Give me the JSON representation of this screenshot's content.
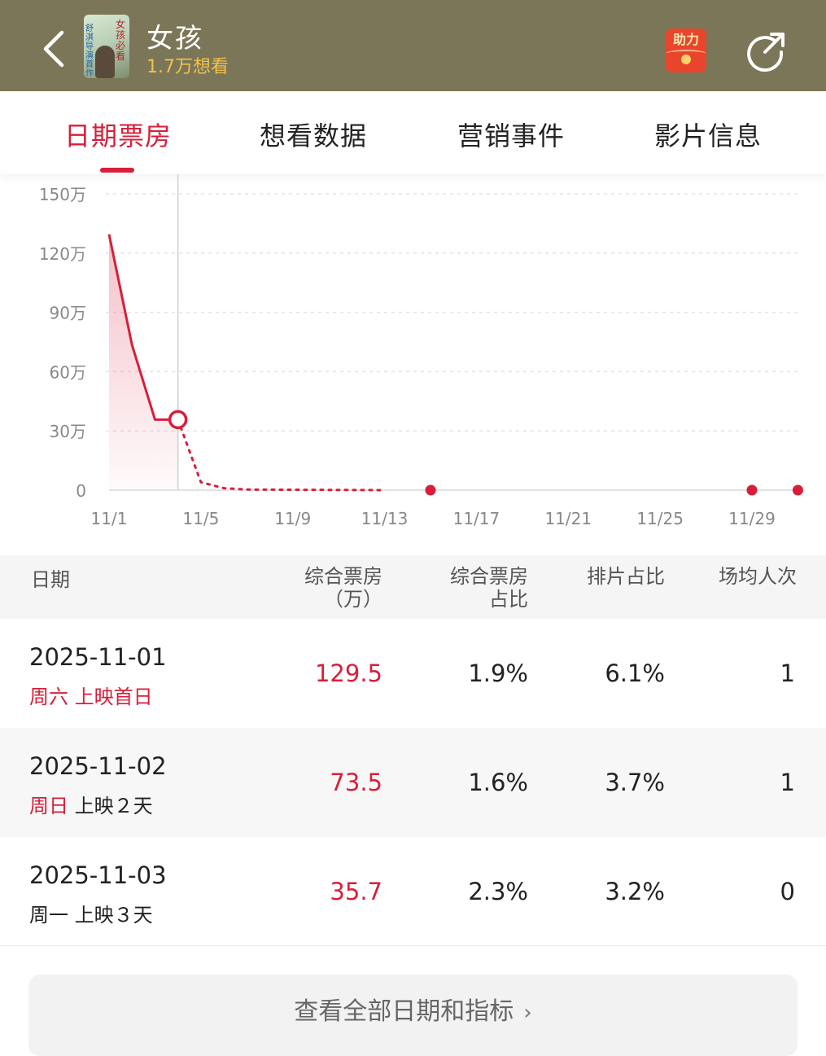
{
  "header": {
    "title": "女孩",
    "want_count": "1.7万想看",
    "poster_text_a": "女孩必看",
    "poster_text_b": "舒淇导演首作",
    "help_label": "助力"
  },
  "tabs": [
    {
      "label": "日期票房",
      "active": true
    },
    {
      "label": "想看数据",
      "active": false
    },
    {
      "label": "营销事件",
      "active": false
    },
    {
      "label": "影片信息",
      "active": false
    }
  ],
  "colors": {
    "accent": "#d81e3a",
    "header_bg": "#7a7657",
    "want_count": "#f2c14e"
  },
  "chart_data": {
    "type": "line",
    "y_unit_suffix": "万",
    "yticks": [
      0,
      30,
      60,
      90,
      120,
      150
    ],
    "ytick_labels": [
      "0",
      "30万",
      "60万",
      "90万",
      "120万",
      "150万"
    ],
    "ylim": [
      0,
      150
    ],
    "xtick_labels": [
      "11/1",
      "11/5",
      "11/9",
      "11/13",
      "11/17",
      "11/21",
      "11/25",
      "11/29"
    ],
    "xlim_days": [
      1,
      31
    ],
    "grid": "horizontal-dashed",
    "series": [
      {
        "style": "solid",
        "points": [
          {
            "x": "11/1",
            "y": 129.5
          },
          {
            "x": "11/2",
            "y": 73.5
          },
          {
            "x": "11/3",
            "y": 35.7
          },
          {
            "x": "11/4",
            "y": 35.7
          }
        ]
      },
      {
        "style": "dotted",
        "points": [
          {
            "x": "11/4",
            "y": 35.7
          },
          {
            "x": "11/5",
            "y": 4
          },
          {
            "x": "11/6",
            "y": 1
          },
          {
            "x": "11/7",
            "y": 0.3
          },
          {
            "x": "11/13",
            "y": 0
          }
        ]
      }
    ],
    "selected_point": {
      "x": "11/4",
      "y": 35.7
    },
    "event_dots": [
      {
        "x": "11/15",
        "y": 0
      },
      {
        "x": "11/29",
        "y": 0
      },
      {
        "x": "12/1",
        "y": 0
      }
    ]
  },
  "table": {
    "headers": {
      "date": "日期",
      "box_line1": "综合票房",
      "box_line2": "（万）",
      "share_line1": "综合票房",
      "share_line2": "占比",
      "schedule": "排片占比",
      "avg": "场均人次"
    },
    "rows": [
      {
        "date": "2025-11-01",
        "weekday": "周六",
        "weekday_red": true,
        "status": "上映首日",
        "status_red": true,
        "box": "129.5",
        "share": "1.9%",
        "schedule": "6.1%",
        "avg": "1"
      },
      {
        "date": "2025-11-02",
        "weekday": "周日",
        "weekday_red": true,
        "status": "上映２天",
        "status_red": false,
        "box": "73.5",
        "share": "1.6%",
        "schedule": "3.7%",
        "avg": "1"
      },
      {
        "date": "2025-11-03",
        "weekday": "周一",
        "weekday_red": false,
        "status": "上映３天",
        "status_red": false,
        "box": "35.7",
        "share": "2.3%",
        "schedule": "3.2%",
        "avg": "0"
      }
    ]
  },
  "footer": {
    "view_all_label": "查看全部日期和指标"
  }
}
